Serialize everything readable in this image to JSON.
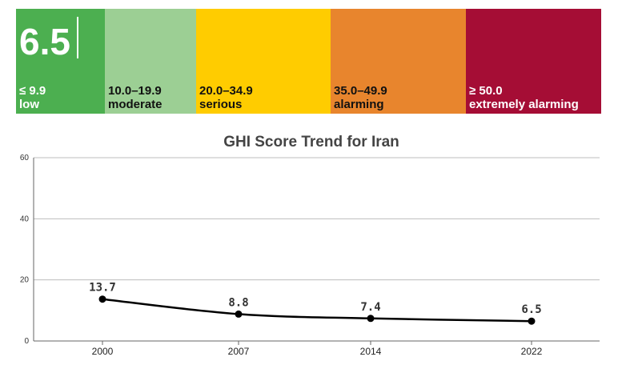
{
  "score_scale": {
    "current_score": "6.5",
    "bands": [
      {
        "range": "≤ 9.9",
        "level": "low",
        "color": "#4caf50",
        "text_color": "#ffffff"
      },
      {
        "range": "10.0–19.9",
        "level": "moderate",
        "color": "#9ccf94",
        "text_color": "#111111"
      },
      {
        "range": "20.0–34.9",
        "level": "serious",
        "color": "#ffcc00",
        "text_color": "#111111"
      },
      {
        "range": "35.0–49.9",
        "level": "alarming",
        "color": "#e8852d",
        "text_color": "#111111"
      },
      {
        "range": "≥ 50.0",
        "level": "extremely alarming",
        "color": "#a50d35",
        "text_color": "#ffffff"
      }
    ]
  },
  "chart_data": {
    "type": "line",
    "title": "GHI Score Trend for Iran",
    "x": [
      "2000",
      "2007",
      "2014",
      "2022"
    ],
    "values": [
      13.7,
      8.8,
      7.4,
      6.5
    ],
    "data_labels": [
      "13.7",
      "8.8",
      "7.4",
      "6.5"
    ],
    "yticks": [
      "0",
      "20",
      "40",
      "60"
    ],
    "ylim": [
      0,
      60
    ],
    "grid": true,
    "line_color": "#000000"
  }
}
